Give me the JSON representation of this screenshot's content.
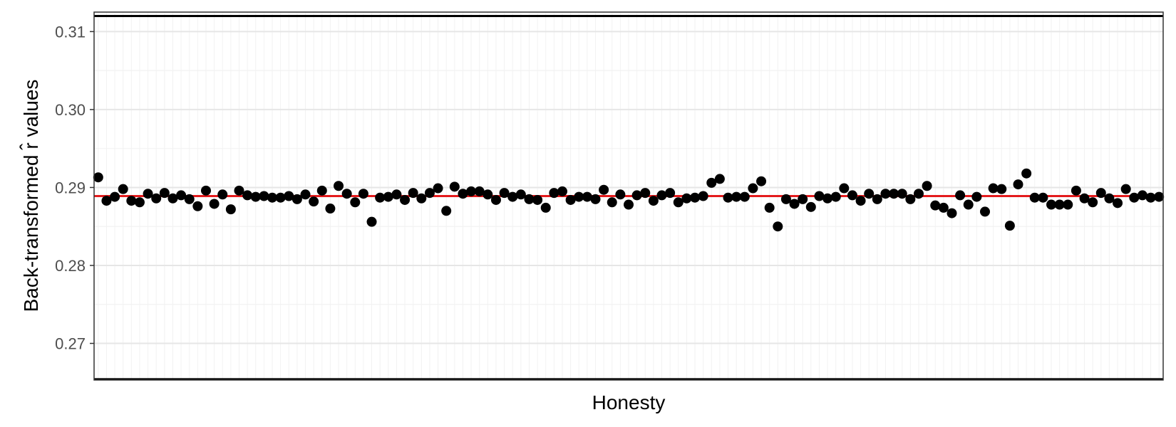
{
  "chart_data": {
    "type": "scatter",
    "title": "",
    "xlabel": "Honesty",
    "ylabel": "Back-transformed r̂ values",
    "ylim": [
      0.2653,
      0.3125
    ],
    "yticks": [
      0.27,
      0.28,
      0.29,
      0.3,
      0.31
    ],
    "ytick_labels": [
      "0.27",
      "0.28",
      "0.29",
      "0.30",
      "0.31"
    ],
    "x_tick_labels_shown": false,
    "grid": true,
    "legend": "none",
    "reference_lines": {
      "upper": 0.312,
      "lower": 0.2654,
      "mean": 0.2889
    },
    "colors": {
      "points": "#000000",
      "mean_line": "#e41a1c",
      "limit_lines": "#000000",
      "grid_major": "#e6e6e6",
      "grid_minor": "#f2f2f2"
    },
    "series": [
      {
        "values": [
          0.2913,
          0.2883,
          0.2888,
          0.2898,
          0.2883,
          0.2881,
          0.2892,
          0.2886,
          0.2893,
          0.2886,
          0.289,
          0.2885,
          0.2876,
          0.2896,
          0.2879,
          0.2891,
          0.2872,
          0.2896,
          0.289,
          0.2888,
          0.2889,
          0.2887,
          0.2887,
          0.2889,
          0.2885,
          0.2891,
          0.2882,
          0.2896,
          0.2873,
          0.2902,
          0.2892,
          0.2881,
          0.2892,
          0.2856,
          0.2887,
          0.2888,
          0.2891,
          0.2884,
          0.2893,
          0.2886,
          0.2893,
          0.2899,
          0.287,
          0.2901,
          0.2892,
          0.2895,
          0.2895,
          0.2891,
          0.2884,
          0.2893,
          0.2888,
          0.2891,
          0.2885,
          0.2884,
          0.2874,
          0.2893,
          0.2895,
          0.2884,
          0.2888,
          0.2888,
          0.2885,
          0.2897,
          0.2881,
          0.2891,
          0.2878,
          0.289,
          0.2893,
          0.2883,
          0.289,
          0.2893,
          0.2881,
          0.2886,
          0.2887,
          0.2889,
          0.2906,
          0.2911,
          0.2887,
          0.2888,
          0.2888,
          0.2899,
          0.2908,
          0.2874,
          0.285,
          0.2885,
          0.2879,
          0.2885,
          0.2875,
          0.2889,
          0.2886,
          0.2888,
          0.2899,
          0.289,
          0.2883,
          0.2892,
          0.2885,
          0.2892,
          0.2892,
          0.2892,
          0.2885,
          0.2892,
          0.2902,
          0.2877,
          0.2874,
          0.2867,
          0.289,
          0.2878,
          0.2888,
          0.2869,
          0.2899,
          0.2898,
          0.2851,
          0.2904,
          0.2918,
          0.2887,
          0.2887,
          0.2878,
          0.2878,
          0.2878,
          0.2896,
          0.2886,
          0.2881,
          0.2893,
          0.2886,
          0.288,
          0.2898,
          0.2887,
          0.289,
          0.2887,
          0.2888
        ]
      }
    ]
  }
}
